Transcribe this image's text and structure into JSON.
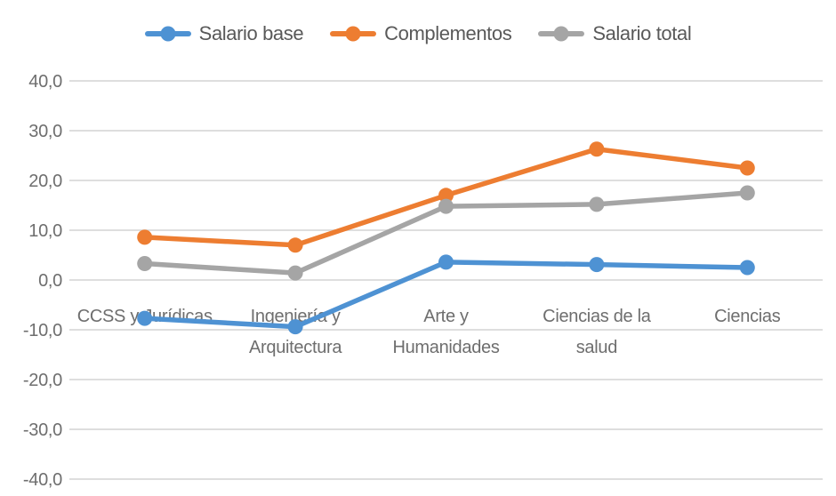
{
  "chart_data": {
    "type": "line",
    "title": "",
    "xlabel": "",
    "ylabel": "",
    "grid": true,
    "legend_position": "top",
    "categories": [
      "CCSS y Jurídicas",
      "Ingeniería y\nArquitectura",
      "Arte y\nHumanidades",
      "Ciencias de la\nsalud",
      "Ciencias"
    ],
    "series": [
      {
        "name": "Salario base",
        "color": "#4E92D3",
        "values": [
          -7.7,
          -9.4,
          3.6,
          3.1,
          2.5
        ]
      },
      {
        "name": "Complementos",
        "color": "#ED7D31",
        "values": [
          8.6,
          7.0,
          17.0,
          26.3,
          22.5
        ]
      },
      {
        "name": "Salario total",
        "color": "#A5A5A5",
        "values": [
          3.3,
          1.4,
          14.8,
          15.2,
          17.5
        ]
      }
    ],
    "ylim": [
      -40,
      40
    ],
    "ytick_step": 10,
    "ytick_labels": [
      "40,0",
      "30,0",
      "20,0",
      "10,0",
      "0,0",
      "-10,0",
      "-20,0",
      "-30,0",
      "-40,0"
    ]
  },
  "colors": {
    "grid": "#dedede",
    "axis_text": "#6e6e6e",
    "legend_text": "#595959"
  }
}
